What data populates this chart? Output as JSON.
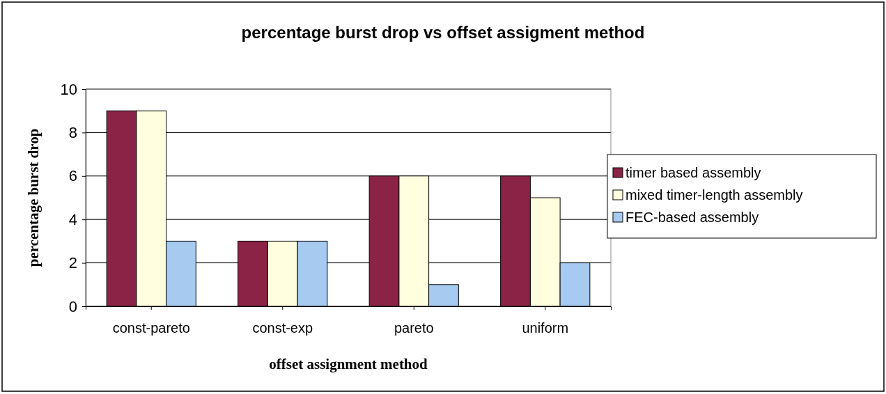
{
  "chart_data": {
    "type": "bar",
    "title": "percentage burst drop vs offset assigment method",
    "xlabel": "offset assignment method",
    "ylabel": "percentage burst drop",
    "categories": [
      "const-pareto",
      "const-exp",
      "pareto",
      "uniform"
    ],
    "series": [
      {
        "name": "timer based assembly",
        "color": "#8b2346",
        "values": [
          9,
          3,
          6,
          6
        ]
      },
      {
        "name": "mixed timer-length assembly",
        "color": "#ffffe0",
        "values": [
          9,
          3,
          6,
          5
        ]
      },
      {
        "name": "FEC-based assembly",
        "color": "#a6caf0",
        "values": [
          3,
          3,
          1,
          2
        ]
      }
    ],
    "ylim": [
      0,
      10
    ],
    "yticks": [
      0,
      2,
      4,
      6,
      8,
      10
    ],
    "grid": "y",
    "legend": "right"
  }
}
